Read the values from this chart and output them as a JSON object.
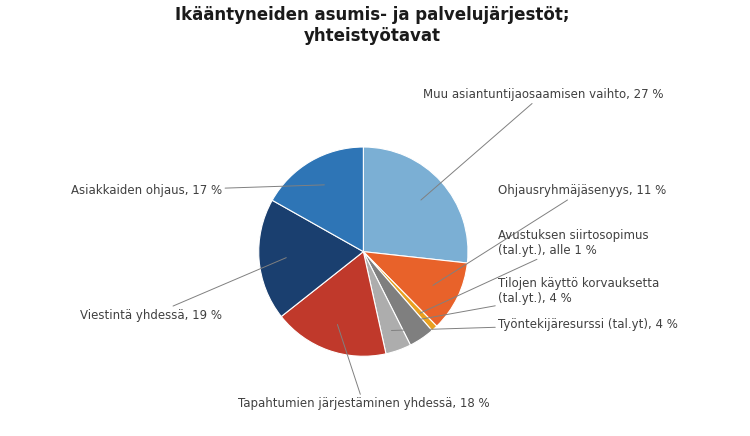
{
  "title": "Ikääntyneiden asumis- ja palvelujärjestöt;\nyhteistyötavat",
  "slices": [
    {
      "label": "Muu asiantuntijaosaamisen vaihto, 27 %",
      "value": 27,
      "color": "#7BAFD4"
    },
    {
      "label": "Ohjausryhmäjäsenyys, 11 %",
      "value": 11,
      "color": "#E8622A"
    },
    {
      "label": "Avustuksen siirtosopimus\n(tal.yt.), alle 1 %",
      "value": 1,
      "color": "#E8A020"
    },
    {
      "label": "Tilojen käyttö korvauksetta\n(tal.yt.), 4 %",
      "value": 4,
      "color": "#7F7F7F"
    },
    {
      "label": "Työntekijäresurssi (tal.yt), 4 %",
      "value": 4,
      "color": "#ADADAD"
    },
    {
      "label": "Tapahtumien järjestäminen yhdessä, 18 %",
      "value": 18,
      "color": "#C0392B"
    },
    {
      "label": "Viestintä yhdessä, 19 %",
      "value": 19,
      "color": "#1A3F6F"
    },
    {
      "label": "Asiakkaiden ohjaus, 17 %",
      "value": 17,
      "color": "#2E75B6"
    }
  ],
  "title_fontsize": 12,
  "label_fontsize": 8.5,
  "background_color": "#FFFFFF",
  "startangle": 90
}
